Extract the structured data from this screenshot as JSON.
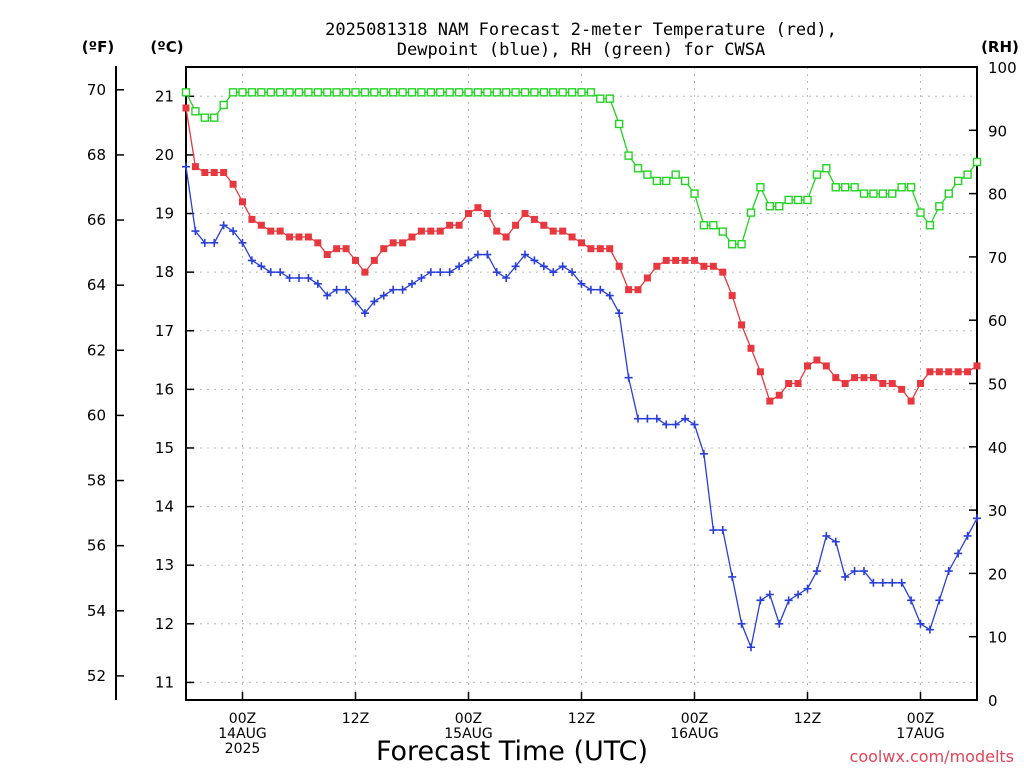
{
  "chart_data": {
    "type": "line",
    "title": [
      "2025081318 NAM Forecast 2-meter Temperature (red),",
      "Dewpoint (blue), RH (green) for CWSA"
    ],
    "xlabel": "Forecast Time (UTC)",
    "credit": "coolwx.com/modelts",
    "units": {
      "fahrenheit": "(ºF)",
      "celsius": "(ºC)",
      "rh": "(RH)"
    },
    "x_start_utc": "2025-08-13T18Z",
    "x_step_hours": 1,
    "xlim_hours": [
      0,
      84
    ],
    "x_ticks": [
      {
        "hour": 6,
        "lines": [
          "00Z",
          "14AUG",
          "2025"
        ]
      },
      {
        "hour": 18,
        "lines": [
          "12Z"
        ]
      },
      {
        "hour": 30,
        "lines": [
          "00Z",
          "15AUG"
        ]
      },
      {
        "hour": 42,
        "lines": [
          "12Z"
        ]
      },
      {
        "hour": 54,
        "lines": [
          "00Z",
          "16AUG"
        ]
      },
      {
        "hour": 66,
        "lines": [
          "12Z"
        ]
      },
      {
        "hour": 78,
        "lines": [
          "00Z",
          "17AUG"
        ]
      }
    ],
    "y_celsius": {
      "ylim": [
        10.7,
        21.5
      ],
      "ticks": [
        11,
        12,
        13,
        14,
        15,
        16,
        17,
        18,
        19,
        20,
        21
      ]
    },
    "y_fahrenheit": {
      "ticks": [
        52,
        54,
        56,
        58,
        60,
        62,
        64,
        66,
        68,
        70
      ]
    },
    "y_rh": {
      "ylim": [
        0,
        100
      ],
      "ticks": [
        0,
        10,
        20,
        30,
        40,
        50,
        60,
        70,
        80,
        90,
        100
      ]
    },
    "grid": true,
    "series": [
      {
        "name": "Temperature (red)",
        "axis": "celsius",
        "color": "#e8383f",
        "marker": "filled-square",
        "values": [
          20.8,
          19.8,
          19.7,
          19.7,
          19.7,
          19.5,
          19.2,
          18.9,
          18.8,
          18.7,
          18.7,
          18.6,
          18.6,
          18.6,
          18.5,
          18.3,
          18.4,
          18.4,
          18.2,
          18.0,
          18.2,
          18.4,
          18.5,
          18.5,
          18.6,
          18.7,
          18.7,
          18.7,
          18.8,
          18.8,
          19.0,
          19.1,
          19.0,
          18.7,
          18.6,
          18.8,
          19.0,
          18.9,
          18.8,
          18.7,
          18.7,
          18.6,
          18.5,
          18.4,
          18.4,
          18.4,
          18.1,
          17.7,
          17.7,
          17.9,
          18.1,
          18.2,
          18.2,
          18.2,
          18.2,
          18.1,
          18.1,
          18.0,
          17.6,
          17.1,
          16.7,
          16.3,
          15.8,
          15.9,
          16.1,
          16.1,
          16.4,
          16.5,
          16.4,
          16.2,
          16.1,
          16.2,
          16.2,
          16.2,
          16.1,
          16.1,
          16.0,
          15.8,
          16.1,
          16.3,
          16.3,
          16.3,
          16.3,
          16.3,
          16.4
        ]
      },
      {
        "name": "Dewpoint (blue)",
        "axis": "celsius",
        "color": "#2a3fd8",
        "marker": "plus",
        "values": [
          19.8,
          18.7,
          18.5,
          18.5,
          18.8,
          18.7,
          18.5,
          18.2,
          18.1,
          18.0,
          18.0,
          17.9,
          17.9,
          17.9,
          17.8,
          17.6,
          17.7,
          17.7,
          17.5,
          17.3,
          17.5,
          17.6,
          17.7,
          17.7,
          17.8,
          17.9,
          18.0,
          18.0,
          18.0,
          18.1,
          18.2,
          18.3,
          18.3,
          18.0,
          17.9,
          18.1,
          18.3,
          18.2,
          18.1,
          18.0,
          18.1,
          18.0,
          17.8,
          17.7,
          17.7,
          17.6,
          17.3,
          16.2,
          15.5,
          15.5,
          15.5,
          15.4,
          15.4,
          15.5,
          15.4,
          14.9,
          13.6,
          13.6,
          12.8,
          12.0,
          11.6,
          12.4,
          12.5,
          12.0,
          12.4,
          12.5,
          12.6,
          12.9,
          13.5,
          13.4,
          12.8,
          12.9,
          12.9,
          12.7,
          12.7,
          12.7,
          12.7,
          12.4,
          12.0,
          11.9,
          12.4,
          12.9,
          13.2,
          13.5,
          13.8
        ]
      },
      {
        "name": "RH (green)",
        "axis": "rh",
        "color": "#22d422",
        "marker": "open-square",
        "values": [
          96,
          93,
          92,
          92,
          94,
          96,
          96,
          96,
          96,
          96,
          96,
          96,
          96,
          96,
          96,
          96,
          96,
          96,
          96,
          96,
          96,
          96,
          96,
          96,
          96,
          96,
          96,
          96,
          96,
          96,
          96,
          96,
          96,
          96,
          96,
          96,
          96,
          96,
          96,
          96,
          96,
          96,
          96,
          96,
          95,
          95,
          91,
          86,
          84,
          83,
          82,
          82,
          83,
          82,
          80,
          75,
          75,
          74,
          72,
          72,
          77,
          81,
          78,
          78,
          79,
          79,
          79,
          83,
          84,
          81,
          81,
          81,
          80,
          80,
          80,
          80,
          81,
          81,
          77,
          75,
          78,
          80,
          82,
          83,
          85
        ]
      }
    ]
  }
}
